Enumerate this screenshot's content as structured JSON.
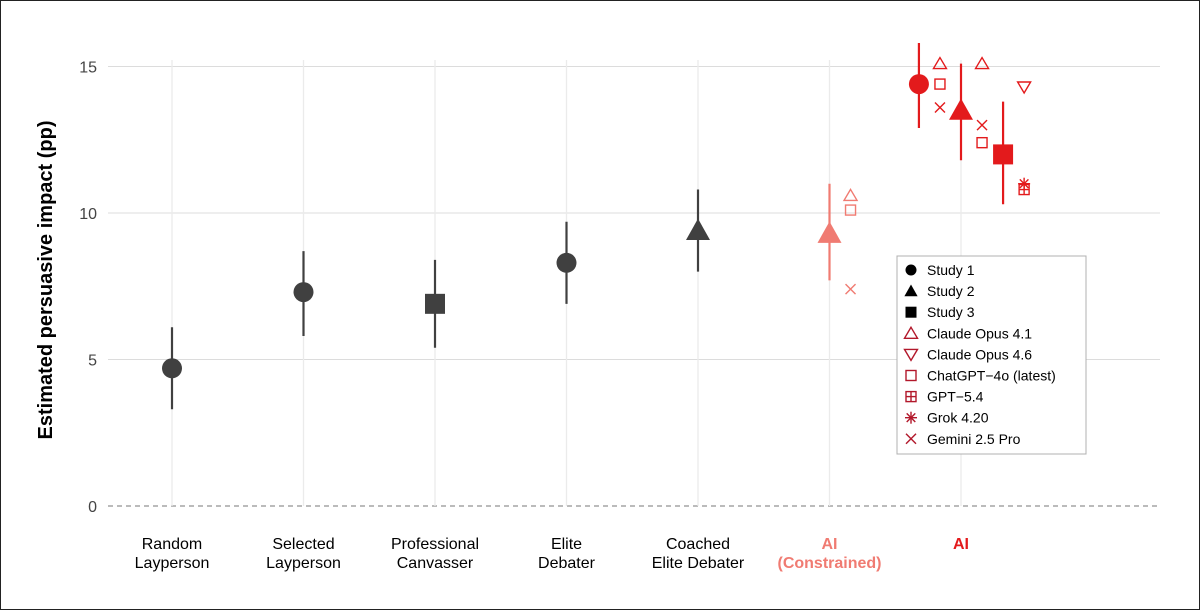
{
  "chart_data": {
    "type": "scatter",
    "title": "",
    "xlabel": "",
    "ylabel": "Estimated persuasive impact (pp)",
    "ylim": [
      0,
      16
    ],
    "yticks": [
      0,
      5,
      10,
      15
    ],
    "grid": true,
    "legend_position": "right",
    "categories": [
      {
        "label": "Random\nLayperson",
        "color": "#000000",
        "bold": false
      },
      {
        "label": "Selected\nLayperson",
        "color": "#000000",
        "bold": false
      },
      {
        "label": "Professional\nCanvasser",
        "color": "#000000",
        "bold": false
      },
      {
        "label": "Elite\nDebater",
        "color": "#000000",
        "bold": false
      },
      {
        "label": "Coached\nElite Debater",
        "color": "#000000",
        "bold": false
      },
      {
        "label": "AI\n(Constrained)",
        "color": "#f07b72",
        "bold": true
      },
      {
        "label": "AI",
        "color": "#e31a1c",
        "bold": true
      }
    ],
    "colors": {
      "human": "#404040",
      "ai_constrained": "#f07b72",
      "ai": "#e31a1c",
      "legend_model": "#b2182b"
    },
    "estimates": [
      {
        "category": 0,
        "offset": 0,
        "study": "Study 1",
        "shape": "circle",
        "y": 4.7,
        "lo": 3.3,
        "hi": 6.1,
        "group": "human"
      },
      {
        "category": 1,
        "offset": 0,
        "study": "Study 1",
        "shape": "circle",
        "y": 7.3,
        "lo": 5.8,
        "hi": 8.7,
        "group": "human"
      },
      {
        "category": 2,
        "offset": 0,
        "study": "Study 3",
        "shape": "square",
        "y": 6.9,
        "lo": 5.4,
        "hi": 8.4,
        "group": "human"
      },
      {
        "category": 3,
        "offset": 0,
        "study": "Study 1",
        "shape": "circle",
        "y": 8.3,
        "lo": 6.9,
        "hi": 9.7,
        "group": "human"
      },
      {
        "category": 4,
        "offset": 0,
        "study": "Study 2",
        "shape": "triangle",
        "y": 9.4,
        "lo": 8.0,
        "hi": 10.8,
        "group": "human"
      },
      {
        "category": 5,
        "offset": 0,
        "study": "Study 2",
        "shape": "triangle",
        "y": 9.3,
        "lo": 7.7,
        "hi": 11.0,
        "group": "ai_constrained"
      },
      {
        "category": 6,
        "offset": -0.32,
        "study": "Study 1",
        "shape": "circle",
        "y": 14.4,
        "lo": 12.9,
        "hi": 15.8,
        "group": "ai"
      },
      {
        "category": 6,
        "offset": 0,
        "study": "Study 2",
        "shape": "triangle",
        "y": 13.5,
        "lo": 11.8,
        "hi": 15.1,
        "group": "ai"
      },
      {
        "category": 6,
        "offset": 0.32,
        "study": "Study 3",
        "shape": "square",
        "y": 12.0,
        "lo": 10.3,
        "hi": 13.8,
        "group": "ai"
      }
    ],
    "models": [
      {
        "category": 5,
        "offset": 0.16,
        "model": "Claude Opus 4.1",
        "y": 10.6,
        "group": "ai_constrained"
      },
      {
        "category": 5,
        "offset": 0.16,
        "model": "ChatGPT−4o (latest)",
        "y": 10.1,
        "group": "ai_constrained"
      },
      {
        "category": 5,
        "offset": 0.16,
        "model": "Gemini 2.5 Pro",
        "y": 7.4,
        "group": "ai_constrained"
      },
      {
        "category": 6,
        "offset": -0.16,
        "model": "Claude Opus 4.1",
        "y": 15.1,
        "group": "ai"
      },
      {
        "category": 6,
        "offset": -0.16,
        "model": "ChatGPT−4o (latest)",
        "y": 14.4,
        "group": "ai"
      },
      {
        "category": 6,
        "offset": -0.16,
        "model": "Gemini 2.5 Pro",
        "y": 13.6,
        "group": "ai"
      },
      {
        "category": 6,
        "offset": 0.16,
        "model": "Claude Opus 4.1",
        "y": 15.1,
        "group": "ai"
      },
      {
        "category": 6,
        "offset": 0.16,
        "model": "Gemini 2.5 Pro",
        "y": 13.0,
        "group": "ai"
      },
      {
        "category": 6,
        "offset": 0.16,
        "model": "ChatGPT−4o (latest)",
        "y": 12.4,
        "group": "ai"
      },
      {
        "category": 6,
        "offset": 0.48,
        "model": "Claude Opus 4.6",
        "y": 14.3,
        "group": "ai"
      },
      {
        "category": 6,
        "offset": 0.48,
        "model": "Grok 4.20",
        "y": 11.0,
        "group": "ai"
      },
      {
        "category": 6,
        "offset": 0.48,
        "model": "GPT−5.4",
        "y": 10.8,
        "group": "ai"
      }
    ],
    "legend": [
      {
        "label": "Study 1",
        "shape": "circle"
      },
      {
        "label": "Study 2",
        "shape": "triangle"
      },
      {
        "label": "Study 3",
        "shape": "square"
      },
      {
        "label": "Claude Opus 4.1",
        "shape": "triangle-open"
      },
      {
        "label": "Claude Opus 4.6",
        "shape": "triangle-down-open"
      },
      {
        "label": "ChatGPT−4o (latest)",
        "shape": "square-open"
      },
      {
        "label": "GPT−5.4",
        "shape": "square-plus"
      },
      {
        "label": "Grok 4.20",
        "shape": "asterisk"
      },
      {
        "label": "Gemini 2.5 Pro",
        "shape": "x"
      }
    ]
  }
}
